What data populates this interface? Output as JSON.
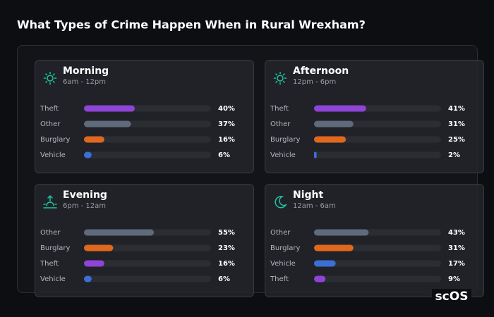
{
  "title": "What Types of Crime Happen When in Rural Wrexham?",
  "brand": "scOS",
  "chart_data": [
    {
      "type": "bar",
      "title": "Morning",
      "subtitle": "6am - 12pm",
      "categories": [
        "Theft",
        "Other",
        "Burglary",
        "Vehicle"
      ],
      "values": [
        40,
        37,
        16,
        6
      ],
      "value_labels": [
        "40%",
        "37%",
        "16%",
        "6%"
      ],
      "colors": [
        "#8e44d6",
        "#5f6b7c",
        "#e0681e",
        "#3b6fd6"
      ],
      "xlim": [
        0,
        100
      ]
    },
    {
      "type": "bar",
      "title": "Afternoon",
      "subtitle": "12pm - 6pm",
      "categories": [
        "Theft",
        "Other",
        "Burglary",
        "Vehicle"
      ],
      "values": [
        41,
        31,
        25,
        2
      ],
      "value_labels": [
        "41%",
        "31%",
        "25%",
        "2%"
      ],
      "colors": [
        "#8e44d6",
        "#5f6b7c",
        "#e0681e",
        "#3b6fd6"
      ],
      "xlim": [
        0,
        100
      ]
    },
    {
      "type": "bar",
      "title": "Evening",
      "subtitle": "6pm - 12am",
      "categories": [
        "Other",
        "Burglary",
        "Theft",
        "Vehicle"
      ],
      "values": [
        55,
        23,
        16,
        6
      ],
      "value_labels": [
        "55%",
        "23%",
        "16%",
        "6%"
      ],
      "colors": [
        "#5f6b7c",
        "#e0681e",
        "#8e44d6",
        "#3b6fd6"
      ],
      "xlim": [
        0,
        100
      ]
    },
    {
      "type": "bar",
      "title": "Night",
      "subtitle": "12am - 6am",
      "categories": [
        "Other",
        "Burglary",
        "Vehicle",
        "Theft"
      ],
      "values": [
        43,
        31,
        17,
        9
      ],
      "value_labels": [
        "43%",
        "31%",
        "17%",
        "9%"
      ],
      "colors": [
        "#5f6b7c",
        "#e0681e",
        "#3b6fd6",
        "#8e44d6"
      ],
      "xlim": [
        0,
        100
      ]
    }
  ]
}
